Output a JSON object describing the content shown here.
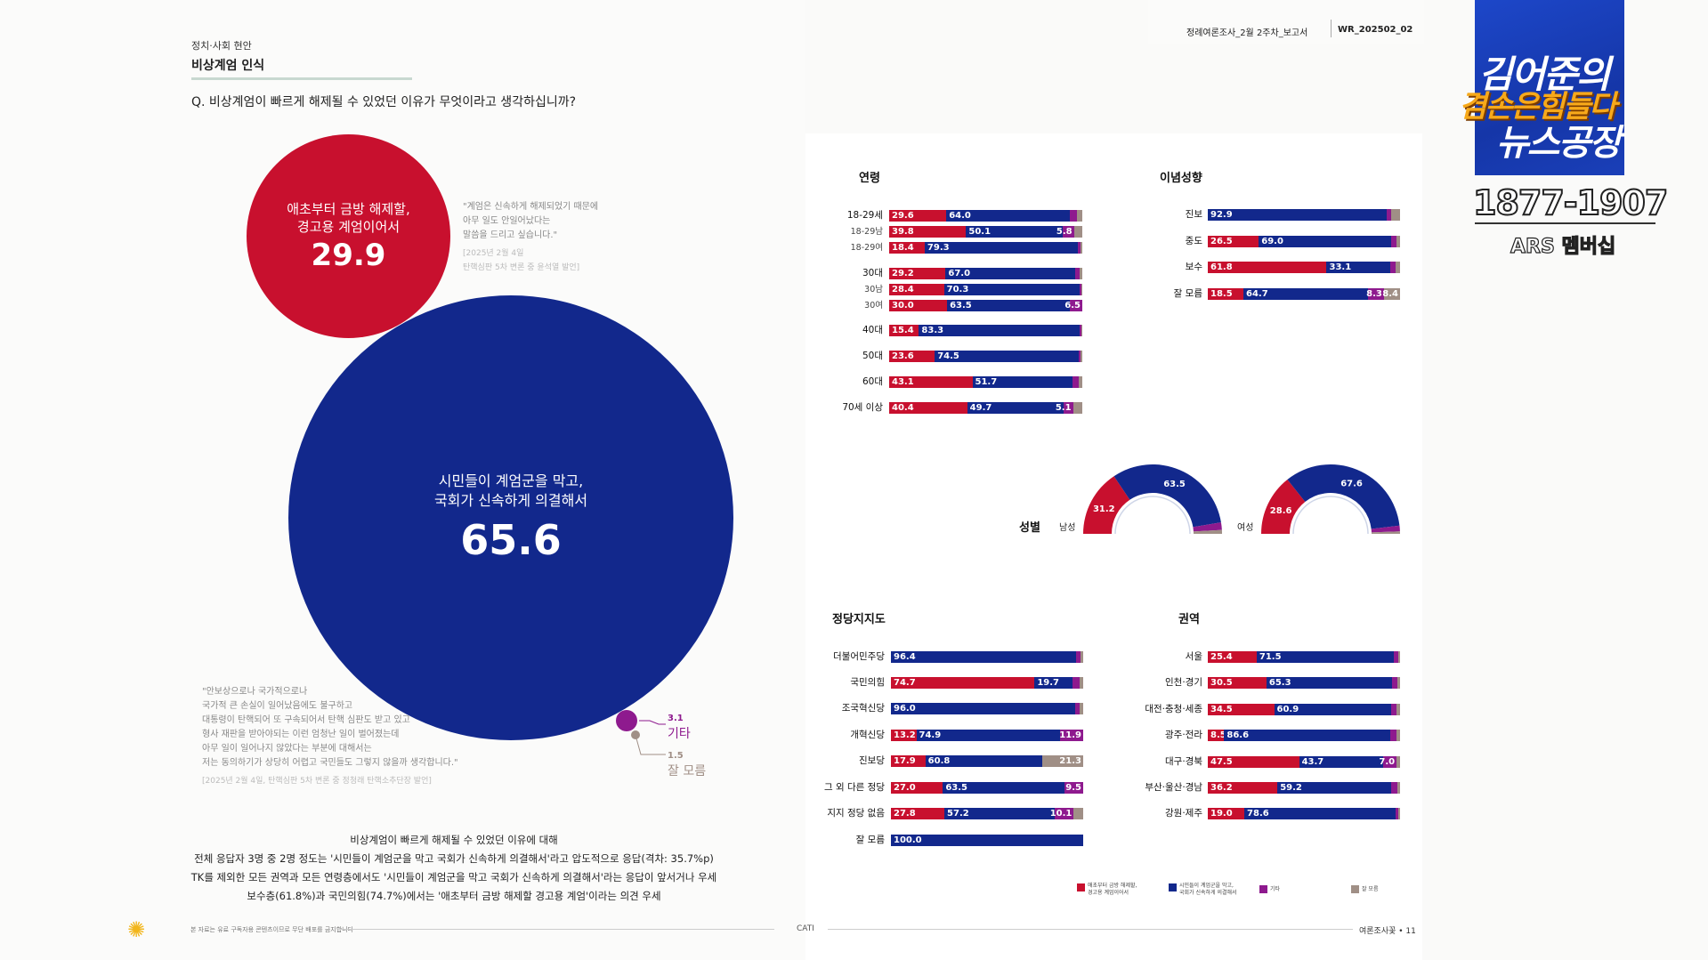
{
  "header": {
    "category": "정치·사회 현안",
    "topic": "비상계엄 인식",
    "question": "Q. 비상계엄이 빠르게 해제될 수 있었던 이유가 무엇이라고 생각하십니까?",
    "report_name": "정례여론조사_2월 2주차_보고서",
    "report_code": "WR_202502_02"
  },
  "bubbles": {
    "martial": {
      "label1": "애초부터 금방 해제할,",
      "label2": "경고용 계엄이어서",
      "value": "29.9"
    },
    "citizens": {
      "label1": "시민들이 계엄군을 막고,",
      "label2": "국회가 신속하게 의결해서",
      "value": "65.6"
    },
    "other": {
      "value": "3.1",
      "label": "기타"
    },
    "unknown": {
      "value": "1.5",
      "label": "잘 모름"
    }
  },
  "quotes": {
    "q1": {
      "l1": "\"계엄은 신속하게 해제되었기 때문에",
      "l2": "아무 일도 안일어났다는",
      "l3": "말씀을 드리고 싶습니다.\"",
      "c1": "[2025년 2월 4일",
      "c2": "탄핵심판 5차 변론 중 윤석열 발언]"
    },
    "q2": {
      "l1": "\"안보상으로나 국가적으로나",
      "l2": "국가적 큰 손실이 일어났음에도 불구하고",
      "l3": "대통령이 탄핵되어 또 구속되어서 탄핵 심판도 받고 있고",
      "l4": "형사 재판을 받아야되는 이런 엄청난 일이 벌어졌는데",
      "l5": "아무 일이 일어나지 않았다는 부분에 대해서는",
      "l6": "저는 동의하기가 상당히 어렵고 국민들도 그렇지 않을까 생각합니다.\"",
      "c1": "[2025년 2월 4일, 탄핵심판 5차 변론 중 정청래 탄핵소추단장 발언]"
    }
  },
  "summary": {
    "s1": "비상계엄이 빠르게 해제될 수 있었던 이유에 대해",
    "s2": "전체 응답자 3명 중 2명 정도는 '시민들이 계엄군을 막고 국회가 신속하게 의결해서'라고 압도적으로 응답(격차: 35.7%p)",
    "s3": "TK를 제외한 모든 권역과 모든 연령층에서도 '시민들이 계엄군을 막고 국회가 신속하게 의결해서'라는 응답이 앞서거나 우세",
    "s4": "보수층(61.8%)과 국민의힘(74.7%)에서는 '애초부터 금방 해제할 경고용 계엄'이라는 의견 우세"
  },
  "footer": {
    "disclaimer": "본 자료는 유료 구독자용 콘텐츠이므로 무단 배포를 금지합니다",
    "method": "CATI",
    "page": "여론조사꽃 • 11"
  },
  "colors": {
    "red": "#c8102e",
    "blue": "#12288c",
    "purple": "#8e1a8e",
    "gray": "#a08f86"
  },
  "legend": {
    "l1a": "애초부터 금방 해제할,",
    "l1b": "경고용 계엄이어서",
    "l2a": "시민들이 계엄군을 막고,",
    "l2b": "국회가 신속하게 의결해서",
    "l3": "기타",
    "l4": "잘 모름"
  },
  "gender": {
    "title": "성별",
    "male_label": "남성",
    "female_label": "여성"
  },
  "branding": {
    "show_l1": "김어준의",
    "show_l2": "겸손은힘들다",
    "show_l3": "뉴스공장",
    "phone": "1877-1907",
    "ars": "ARS 멤버십"
  },
  "chart_data": [
    {
      "type": "bar",
      "stacked": true,
      "title": "연령",
      "series_names": [
        "애초부터 금방 해제할, 경고용 계엄이어서",
        "시민들이 계엄군을 막고, 국회가 신속하게 의결해서",
        "기타",
        "잘 모름"
      ],
      "rows": [
        {
          "label": "18-29세",
          "values": [
            29.6,
            64.0,
            3.8,
            2.6
          ],
          "labels": [
            "29.6",
            "64.0",
            "",
            ""
          ]
        },
        {
          "label": "18-29남",
          "sub": true,
          "values": [
            39.8,
            50.1,
            5.8,
            4.3
          ],
          "labels": [
            "39.8",
            "50.1",
            "5.8",
            ""
          ]
        },
        {
          "label": "18-29여",
          "sub": true,
          "values": [
            18.4,
            79.3,
            1.5,
            0.8
          ],
          "labels": [
            "18.4",
            "79.3",
            "",
            ""
          ]
        },
        {
          "label": "30대",
          "values": [
            29.2,
            67.0,
            2.5,
            1.3
          ],
          "labels": [
            "29.2",
            "67.0",
            "",
            ""
          ]
        },
        {
          "label": "30남",
          "sub": true,
          "values": [
            28.4,
            70.3,
            0.8,
            0.5
          ],
          "labels": [
            "28.4",
            "70.3",
            "",
            ""
          ]
        },
        {
          "label": "30여",
          "sub": true,
          "values": [
            30.0,
            63.5,
            6.5,
            0.0
          ],
          "labels": [
            "30.0",
            "63.5",
            "6.5",
            ""
          ]
        },
        {
          "label": "40대",
          "values": [
            15.4,
            83.3,
            0.8,
            0.5
          ],
          "labels": [
            "15.4",
            "83.3",
            "",
            ""
          ]
        },
        {
          "label": "50대",
          "values": [
            23.6,
            74.5,
            1.2,
            0.7
          ],
          "labels": [
            "23.6",
            "74.5",
            "",
            ""
          ]
        },
        {
          "label": "60대",
          "values": [
            43.1,
            51.7,
            3.5,
            1.7
          ],
          "labels": [
            "43.1",
            "51.7",
            "",
            ""
          ]
        },
        {
          "label": "70세 이상",
          "values": [
            40.4,
            49.7,
            5.1,
            4.8
          ],
          "labels": [
            "40.4",
            "49.7",
            "5.1",
            ""
          ]
        }
      ]
    },
    {
      "type": "bar",
      "stacked": true,
      "title": "이념성향",
      "rows": [
        {
          "label": "진보",
          "values": [
            0,
            92.9,
            2.5,
            4.6
          ],
          "labels": [
            "",
            "92.9",
            "",
            ""
          ]
        },
        {
          "label": "중도",
          "values": [
            26.5,
            69.0,
            2.5,
            2.0
          ],
          "labels": [
            "26.5",
            "69.0",
            "",
            ""
          ]
        },
        {
          "label": "보수",
          "values": [
            61.8,
            33.1,
            2.8,
            2.3
          ],
          "labels": [
            "61.8",
            "33.1",
            "",
            ""
          ]
        },
        {
          "label": "잘 모름",
          "values": [
            18.5,
            64.7,
            8.3,
            8.4
          ],
          "labels": [
            "18.5",
            "64.7",
            "8.3",
            "8.4"
          ]
        }
      ]
    },
    {
      "type": "pie",
      "subtype": "semi-donut",
      "title": "성별 - 남성",
      "values": [
        31.2,
        63.5,
        3.5,
        1.8
      ],
      "labels": [
        "31.2",
        "63.5",
        "",
        ""
      ]
    },
    {
      "type": "pie",
      "subtype": "semi-donut",
      "title": "성별 - 여성",
      "values": [
        28.6,
        67.6,
        2.7,
        1.1
      ],
      "labels": [
        "28.6",
        "67.6",
        "",
        ""
      ]
    },
    {
      "type": "bar",
      "stacked": true,
      "title": "정당지지도",
      "rows": [
        {
          "label": "더불어민주당",
          "values": [
            0,
            96.4,
            2.4,
            1.2
          ],
          "labels": [
            "",
            "96.4",
            "",
            ""
          ]
        },
        {
          "label": "국민의힘",
          "values": [
            74.7,
            19.7,
            3.6,
            2.0
          ],
          "labels": [
            "74.7",
            "19.7",
            "",
            ""
          ]
        },
        {
          "label": "조국혁신당",
          "values": [
            0,
            96.0,
            2.0,
            2.0
          ],
          "labels": [
            "",
            "96.0",
            "",
            ""
          ]
        },
        {
          "label": "개혁신당",
          "values": [
            13.2,
            74.9,
            11.9,
            0
          ],
          "labels": [
            "13.2",
            "74.9",
            "11.9",
            ""
          ]
        },
        {
          "label": "진보당",
          "values": [
            17.9,
            60.8,
            0,
            21.3
          ],
          "labels": [
            "17.9",
            "60.8",
            "",
            "21.3"
          ]
        },
        {
          "label": "그 외 다른 정당",
          "values": [
            27.0,
            63.5,
            9.5,
            0
          ],
          "labels": [
            "27.0",
            "63.5",
            "9.5",
            ""
          ]
        },
        {
          "label": "지지 정당 없음",
          "values": [
            27.8,
            57.2,
            10.1,
            4.9
          ],
          "labels": [
            "27.8",
            "57.2",
            "10.1",
            ""
          ]
        },
        {
          "label": "잘 모름",
          "values": [
            0,
            100.0,
            0,
            0
          ],
          "labels": [
            "",
            "100.0",
            "",
            ""
          ]
        }
      ]
    },
    {
      "type": "bar",
      "stacked": true,
      "title": "권역",
      "rows": [
        {
          "label": "서울",
          "values": [
            25.4,
            71.5,
            2.0,
            1.1
          ],
          "labels": [
            "25.4",
            "71.5",
            "",
            ""
          ]
        },
        {
          "label": "인천·경기",
          "values": [
            30.5,
            65.3,
            2.7,
            1.5
          ],
          "labels": [
            "30.5",
            "65.3",
            "",
            ""
          ]
        },
        {
          "label": "대전·충청·세종",
          "values": [
            34.5,
            60.9,
            2.8,
            1.8
          ],
          "labels": [
            "34.5",
            "60.9",
            "",
            ""
          ]
        },
        {
          "label": "광주·전라",
          "values": [
            8.5,
            86.6,
            3.0,
            1.9
          ],
          "labels": [
            "8.5",
            "86.6",
            "",
            ""
          ]
        },
        {
          "label": "대구·경북",
          "values": [
            47.5,
            43.7,
            7.0,
            1.8
          ],
          "labels": [
            "47.5",
            "43.7",
            "7.0",
            ""
          ]
        },
        {
          "label": "부산·울산·경남",
          "values": [
            36.2,
            59.2,
            3.1,
            1.5
          ],
          "labels": [
            "36.2",
            "59.2",
            "",
            ""
          ]
        },
        {
          "label": "강원·제주",
          "values": [
            19.0,
            78.6,
            1.6,
            0.8
          ],
          "labels": [
            "19.0",
            "78.6",
            "",
            ""
          ]
        }
      ]
    }
  ]
}
